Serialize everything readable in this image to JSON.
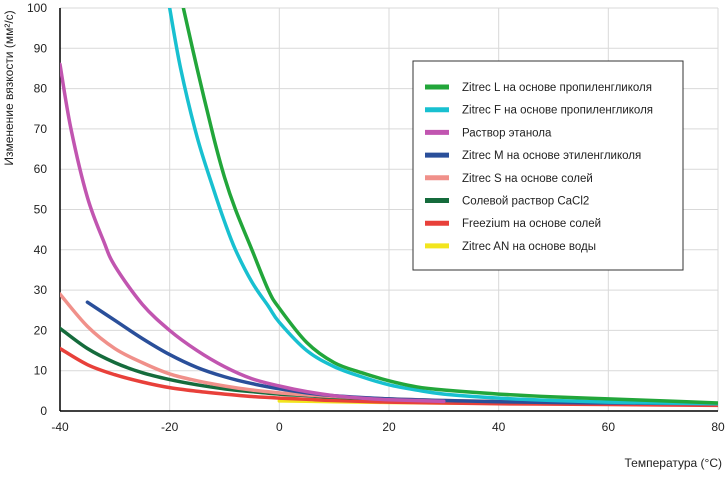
{
  "chart_data": {
    "type": "line",
    "title": "",
    "xlabel": "Температура (°C)",
    "ylabel": "Изменение вязкости (мм²/с)",
    "xlim": [
      -40,
      80
    ],
    "ylim": [
      0,
      100
    ],
    "xticks": [
      -40,
      -20,
      0,
      20,
      40,
      60,
      80
    ],
    "yticks": [
      0,
      10,
      20,
      30,
      40,
      50,
      60,
      70,
      80,
      90,
      100
    ],
    "grid": true,
    "legend_position": "top-right",
    "series": [
      {
        "name": "Zitrec L на основе пропиленгликоля",
        "color": "#22a63a",
        "x": [
          -17.5,
          -15,
          -12,
          -10,
          -8,
          -5,
          -2,
          0,
          5,
          10,
          15,
          20,
          25,
          30,
          40,
          50,
          60,
          70,
          80
        ],
        "y": [
          100,
          85,
          68,
          58,
          50,
          40,
          30,
          25.5,
          17,
          12,
          9.5,
          7.5,
          6,
          5.2,
          4.2,
          3.5,
          3.0,
          2.5,
          2.0
        ]
      },
      {
        "name": "Zitrec F на основе пропиленгликоля",
        "color": "#18c0d0",
        "x": [
          -20,
          -18,
          -15,
          -12,
          -10,
          -8,
          -5,
          -2,
          0,
          5,
          10,
          15,
          20,
          25,
          30,
          40,
          50,
          60,
          70,
          80
        ],
        "y": [
          100,
          85,
          68,
          55,
          47,
          40,
          32,
          26,
          22,
          15,
          11,
          8.5,
          6.5,
          5.2,
          4.2,
          3.2,
          2.6,
          2.2,
          2.0,
          1.8
        ]
      },
      {
        "name": "Раствор этанола",
        "color": "#c155b0",
        "x": [
          -40,
          -38,
          -35,
          -32,
          -30,
          -25,
          -20,
          -15,
          -10,
          -5,
          0,
          5,
          10,
          15,
          20,
          30
        ],
        "y": [
          86,
          70,
          53,
          42,
          36,
          26.5,
          20,
          15,
          11,
          8,
          6.2,
          4.8,
          3.8,
          3.2,
          2.8,
          2.4
        ]
      },
      {
        "name": "Zitrec M на основе этиленгликоля",
        "color": "#2a4f9a",
        "x": [
          -35,
          -30,
          -25,
          -20,
          -15,
          -10,
          -5,
          0,
          5,
          10,
          20,
          30,
          40,
          50,
          60,
          70,
          80
        ],
        "y": [
          27,
          22.5,
          18,
          14,
          10.8,
          8.5,
          6.8,
          5.5,
          4.5,
          3.8,
          3.0,
          2.6,
          2.3,
          2.1,
          2.0,
          1.9,
          1.8
        ]
      },
      {
        "name": "Zitrec S на основе солей",
        "color": "#f0908a",
        "x": [
          -40,
          -35,
          -30,
          -25,
          -20,
          -15,
          -10,
          -5,
          0,
          5,
          10,
          20,
          30,
          40,
          50,
          60,
          70,
          80
        ],
        "y": [
          29,
          21,
          15.5,
          12,
          9.2,
          7.5,
          6.2,
          5.2,
          4.5,
          4.0,
          3.6,
          3.0,
          2.6,
          2.4,
          2.2,
          2.0,
          1.9,
          1.8
        ]
      },
      {
        "name": "Солевой раствор CaCl2",
        "color": "#156b3c",
        "x": [
          -40,
          -35,
          -30,
          -25,
          -20,
          -15,
          -10,
          -5,
          0,
          5,
          10,
          20
        ],
        "y": [
          20.5,
          15.5,
          12,
          9.5,
          7.8,
          6.5,
          5.5,
          4.8,
          4.2,
          3.8,
          3.4,
          3.0
        ]
      },
      {
        "name": "Freezium на основе солей",
        "color": "#e8403a",
        "x": [
          -40,
          -35,
          -30,
          -25,
          -20,
          -15,
          -10,
          -5,
          0,
          5,
          10,
          20,
          30,
          40,
          50,
          60,
          70,
          80
        ],
        "y": [
          15.5,
          11.5,
          9.0,
          7.2,
          5.8,
          4.9,
          4.2,
          3.6,
          3.2,
          2.9,
          2.6,
          2.2,
          2.0,
          1.8,
          1.7,
          1.6,
          1.5,
          1.4
        ]
      },
      {
        "name": "Zitrec AN на основе воды",
        "color": "#f2e51e",
        "x": [
          0,
          10,
          20,
          30,
          40,
          50,
          60,
          70,
          80
        ],
        "y": [
          2.5,
          2.3,
          2.1,
          2.0,
          1.9,
          1.8,
          1.7,
          1.6,
          1.5
        ]
      }
    ]
  }
}
